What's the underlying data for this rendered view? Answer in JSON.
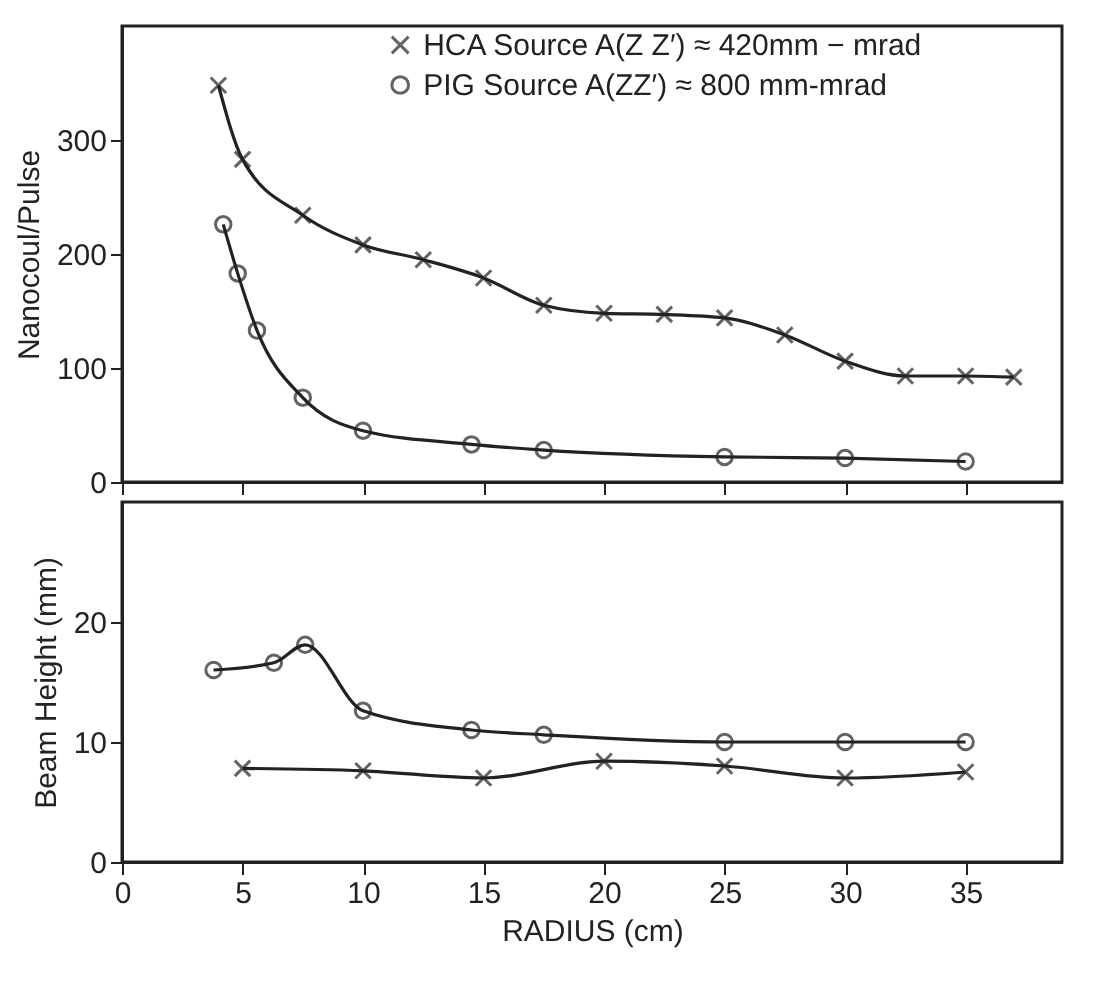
{
  "chart_data": [
    {
      "type": "line",
      "ylabel": "Nanocoul/Pulse",
      "xlim": [
        0,
        39
      ],
      "xticks": [
        0,
        5,
        10,
        15,
        20,
        25,
        30,
        35
      ],
      "ylim": [
        0,
        400
      ],
      "yticks": [
        0,
        100,
        200,
        300
      ],
      "tick_labels": "y",
      "legend": "top",
      "grid": false,
      "line_style": "solid",
      "series": [
        {
          "name": "HCA  Source  A(Z Z′) ≈ 420mm − mrad",
          "color": "#222222",
          "marker": "cross",
          "x": [
            4,
            5,
            7.5,
            10,
            12.5,
            15,
            17.5,
            20,
            22.5,
            25,
            27.5,
            30,
            32.5,
            35,
            37
          ],
          "values": [
            348,
            283,
            234,
            208,
            195,
            179,
            155,
            148,
            147,
            144,
            129,
            106,
            93,
            93,
            92
          ]
        },
        {
          "name": "PIG  Source A(ZZ′) ≈ 800 mm-mrad",
          "color": "#222222",
          "marker": "circle",
          "x": [
            4.2,
            4.8,
            5.6,
            7.5,
            10,
            14.5,
            17.5,
            25,
            30,
            35
          ],
          "values": [
            226,
            183,
            133,
            74,
            45,
            33,
            28,
            22,
            21,
            18
          ]
        }
      ]
    },
    {
      "type": "line",
      "xlabel": "RADIUS  (cm)",
      "ylabel": "Beam Height (mm)",
      "xlim": [
        0,
        39
      ],
      "xticks": [
        0,
        5,
        10,
        15,
        20,
        25,
        30,
        35
      ],
      "ylim": [
        0,
        30
      ],
      "yticks": [
        0,
        10,
        20
      ],
      "grid": false,
      "line_style": "solid",
      "series": [
        {
          "color": "#222222",
          "marker": "circle",
          "x": [
            3.8,
            6.3,
            7.6,
            10,
            14.5,
            17.5,
            25,
            30,
            35
          ],
          "values": [
            16.0,
            16.6,
            18.1,
            12.6,
            11.0,
            10.6,
            10,
            10,
            10
          ]
        },
        {
          "color": "#222222",
          "marker": "cross",
          "x": [
            5,
            10,
            15,
            20,
            25,
            30,
            35
          ],
          "values": [
            7.8,
            7.6,
            7.0,
            8.4,
            8.0,
            7.0,
            7.5
          ]
        }
      ]
    }
  ]
}
